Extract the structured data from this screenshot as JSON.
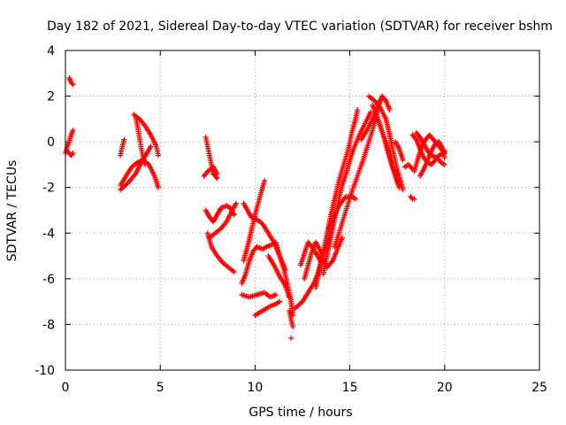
{
  "chart_data": {
    "type": "scatter",
    "title": "Day 182 of 2021, Sidereal Day-to-day VTEC variation (SDTVAR) for receiver bshm",
    "xlabel": "GPS time / hours",
    "ylabel": "SDTVAR / TECUs",
    "xlim": [
      0,
      25
    ],
    "ylim": [
      -10,
      4
    ],
    "xticks": [
      0,
      5,
      10,
      15,
      20,
      25
    ],
    "yticks": [
      -10,
      -8,
      -6,
      -4,
      -2,
      0,
      2,
      4
    ],
    "grid": true,
    "marker": "plus",
    "color": "#ff0000",
    "tracks": [
      [
        [
          0.0,
          -0.5
        ],
        [
          0.1,
          -0.2
        ],
        [
          0.2,
          0.0
        ],
        [
          0.3,
          0.3
        ],
        [
          0.4,
          0.5
        ]
      ],
      [
        [
          0.1,
          -0.4
        ],
        [
          0.2,
          -0.5
        ],
        [
          0.3,
          -0.6
        ],
        [
          0.4,
          -0.5
        ]
      ],
      [
        [
          0.2,
          2.8
        ],
        [
          0.3,
          2.6
        ],
        [
          0.4,
          2.5
        ]
      ],
      [
        [
          2.9,
          -0.6
        ],
        [
          3.0,
          -0.2
        ],
        [
          3.1,
          0.1
        ]
      ],
      [
        [
          2.9,
          -1.9
        ],
        [
          3.2,
          -1.5
        ],
        [
          3.5,
          -1.1
        ],
        [
          3.8,
          -0.9
        ],
        [
          4.1,
          -0.8
        ],
        [
          4.4,
          -1.0
        ],
        [
          4.7,
          -1.5
        ],
        [
          4.9,
          -2.0
        ]
      ],
      [
        [
          2.9,
          -2.1
        ],
        [
          3.3,
          -1.8
        ],
        [
          3.7,
          -1.4
        ],
        [
          4.0,
          -0.9
        ],
        [
          4.3,
          -0.5
        ],
        [
          4.5,
          -0.2
        ]
      ],
      [
        [
          3.6,
          1.2
        ],
        [
          3.9,
          1.0
        ],
        [
          4.2,
          0.7
        ],
        [
          4.5,
          0.3
        ],
        [
          4.8,
          -0.2
        ],
        [
          4.9,
          -0.6
        ]
      ],
      [
        [
          3.7,
          1.1
        ],
        [
          3.8,
          0.7
        ],
        [
          3.9,
          0.2
        ],
        [
          4.0,
          -0.3
        ],
        [
          4.1,
          -0.7
        ],
        [
          4.2,
          -1.0
        ]
      ],
      [
        [
          7.4,
          0.2
        ],
        [
          7.5,
          -0.2
        ],
        [
          7.6,
          -0.6
        ],
        [
          7.7,
          -1.0
        ],
        [
          7.8,
          -1.4
        ],
        [
          8.0,
          -1.6
        ]
      ],
      [
        [
          7.3,
          -1.5
        ],
        [
          7.5,
          -1.3
        ],
        [
          7.8,
          -1.1
        ],
        [
          8.0,
          -1.4
        ]
      ],
      [
        [
          7.4,
          -3.0
        ],
        [
          7.6,
          -3.3
        ],
        [
          7.8,
          -3.5
        ],
        [
          8.0,
          -3.2
        ],
        [
          8.2,
          -2.9
        ],
        [
          8.5,
          -2.8
        ],
        [
          8.7,
          -2.9
        ],
        [
          8.9,
          -3.2
        ]
      ],
      [
        [
          7.5,
          -4.0
        ],
        [
          7.7,
          -4.6
        ],
        [
          8.0,
          -5.0
        ],
        [
          8.3,
          -5.3
        ],
        [
          8.6,
          -5.5
        ],
        [
          8.9,
          -5.7
        ]
      ],
      [
        [
          7.6,
          -4.2
        ],
        [
          7.9,
          -4.0
        ],
        [
          8.2,
          -3.8
        ],
        [
          8.5,
          -3.5
        ],
        [
          8.8,
          -3.0
        ],
        [
          9.0,
          -2.7
        ]
      ],
      [
        [
          9.3,
          -6.2
        ],
        [
          9.5,
          -5.8
        ],
        [
          9.7,
          -5.2
        ],
        [
          9.9,
          -4.8
        ],
        [
          10.1,
          -4.6
        ],
        [
          10.4,
          -4.7
        ],
        [
          10.6,
          -4.6
        ],
        [
          10.9,
          -4.5
        ]
      ],
      [
        [
          9.4,
          -5.2
        ],
        [
          9.6,
          -4.6
        ],
        [
          9.8,
          -3.9
        ],
        [
          10.0,
          -3.2
        ],
        [
          10.2,
          -2.6
        ],
        [
          10.4,
          -2.0
        ],
        [
          10.5,
          -1.7
        ]
      ],
      [
        [
          9.4,
          -2.7
        ],
        [
          9.6,
          -3.0
        ],
        [
          9.8,
          -3.3
        ],
        [
          10.1,
          -3.4
        ],
        [
          10.4,
          -3.6
        ],
        [
          10.7,
          -4.0
        ],
        [
          11.0,
          -4.4
        ],
        [
          11.2,
          -4.8
        ],
        [
          11.4,
          -5.2
        ],
        [
          11.6,
          -5.6
        ]
      ],
      [
        [
          9.3,
          -6.7
        ],
        [
          9.7,
          -6.8
        ],
        [
          10.1,
          -6.7
        ],
        [
          10.5,
          -6.6
        ],
        [
          10.8,
          -6.8
        ],
        [
          11.1,
          -6.7
        ]
      ],
      [
        [
          10.0,
          -7.6
        ],
        [
          10.4,
          -7.4
        ],
        [
          10.8,
          -7.2
        ],
        [
          11.1,
          -7.1
        ],
        [
          11.3,
          -7.0
        ]
      ],
      [
        [
          10.7,
          -5.0
        ],
        [
          11.0,
          -5.4
        ],
        [
          11.3,
          -5.9
        ],
        [
          11.6,
          -6.3
        ],
        [
          11.8,
          -6.8
        ]
      ],
      [
        [
          11.1,
          -4.4
        ],
        [
          11.3,
          -5.0
        ],
        [
          11.5,
          -5.5
        ],
        [
          11.7,
          -6.2
        ],
        [
          11.9,
          -7.0
        ],
        [
          12.0,
          -7.6
        ]
      ],
      [
        [
          11.8,
          -7.4
        ],
        [
          11.9,
          -7.8
        ],
        [
          12.0,
          -8.1
        ]
      ],
      [
        [
          11.9,
          -8.6
        ]
      ],
      [
        [
          12.1,
          -7.3
        ],
        [
          12.5,
          -7.0
        ],
        [
          12.8,
          -6.6
        ],
        [
          13.1,
          -6.2
        ],
        [
          13.3,
          -5.8
        ],
        [
          13.5,
          -5.2
        ],
        [
          13.8,
          -4.4
        ],
        [
          14.0,
          -3.7
        ]
      ],
      [
        [
          12.6,
          -6.0
        ],
        [
          12.8,
          -5.4
        ],
        [
          13.0,
          -4.8
        ],
        [
          13.2,
          -4.4
        ],
        [
          13.4,
          -4.7
        ],
        [
          13.6,
          -5.2
        ],
        [
          13.8,
          -5.5
        ],
        [
          14.1,
          -5.2
        ],
        [
          14.3,
          -4.8
        ],
        [
          14.6,
          -4.2
        ]
      ],
      [
        [
          12.4,
          -5.4
        ],
        [
          12.6,
          -4.9
        ],
        [
          12.8,
          -4.4
        ],
        [
          13.0,
          -4.6
        ],
        [
          13.3,
          -5.0
        ],
        [
          13.5,
          -5.3
        ]
      ],
      [
        [
          13.2,
          -6.4
        ],
        [
          13.4,
          -5.6
        ],
        [
          13.6,
          -4.8
        ],
        [
          13.8,
          -4.0
        ],
        [
          14.0,
          -3.2
        ],
        [
          14.2,
          -2.5
        ],
        [
          14.4,
          -1.8
        ],
        [
          14.6,
          -1.2
        ],
        [
          14.9,
          -0.4
        ],
        [
          15.1,
          0.4
        ],
        [
          15.3,
          1.0
        ],
        [
          15.4,
          1.4
        ]
      ],
      [
        [
          13.6,
          -5.8
        ],
        [
          13.8,
          -5.0
        ],
        [
          14.0,
          -4.2
        ],
        [
          14.2,
          -3.4
        ],
        [
          14.4,
          -2.6
        ],
        [
          14.6,
          -1.9
        ],
        [
          14.8,
          -1.4
        ],
        [
          15.0,
          -0.8
        ],
        [
          15.2,
          -0.3
        ],
        [
          15.5,
          0.3
        ],
        [
          15.8,
          0.8
        ],
        [
          16.1,
          1.3
        ]
      ],
      [
        [
          13.9,
          -3.8
        ],
        [
          14.2,
          -3.2
        ],
        [
          14.5,
          -2.7
        ],
        [
          14.8,
          -2.4
        ],
        [
          15.1,
          -2.4
        ],
        [
          15.3,
          -2.5
        ]
      ],
      [
        [
          14.2,
          -4.6
        ],
        [
          14.5,
          -3.8
        ],
        [
          14.8,
          -3.0
        ],
        [
          15.1,
          -2.2
        ],
        [
          15.4,
          -1.5
        ],
        [
          15.7,
          -0.8
        ],
        [
          16.0,
          0.0
        ],
        [
          16.3,
          0.8
        ],
        [
          16.5,
          1.5
        ],
        [
          16.7,
          2.0
        ]
      ],
      [
        [
          15.6,
          0.1
        ],
        [
          15.9,
          0.5
        ],
        [
          16.2,
          1.0
        ],
        [
          16.5,
          1.6
        ],
        [
          16.7,
          2.0
        ],
        [
          16.9,
          1.8
        ],
        [
          17.1,
          1.4
        ]
      ],
      [
        [
          16.0,
          2.0
        ],
        [
          16.3,
          1.8
        ],
        [
          16.6,
          1.5
        ],
        [
          16.9,
          1.0
        ],
        [
          17.1,
          0.3
        ],
        [
          17.3,
          -0.5
        ],
        [
          17.5,
          -1.2
        ],
        [
          17.7,
          -1.8
        ],
        [
          17.8,
          -2.1
        ]
      ],
      [
        [
          16.2,
          1.6
        ],
        [
          16.4,
          1.2
        ],
        [
          16.6,
          0.7
        ],
        [
          16.8,
          0.2
        ],
        [
          17.0,
          -0.3
        ],
        [
          17.2,
          -0.9
        ],
        [
          17.4,
          -1.4
        ],
        [
          17.6,
          -1.9
        ]
      ],
      [
        [
          16.6,
          0.7
        ],
        [
          16.8,
          0.2
        ],
        [
          17.0,
          -0.4
        ],
        [
          17.2,
          -1.0
        ],
        [
          17.4,
          -1.5
        ],
        [
          17.6,
          -2.0
        ]
      ],
      [
        [
          17.4,
          0.0
        ],
        [
          17.6,
          -0.3
        ],
        [
          17.8,
          -0.8
        ]
      ],
      [
        [
          17.9,
          -1.1
        ],
        [
          18.1,
          -1.0
        ],
        [
          18.3,
          -1.2
        ]
      ],
      [
        [
          18.2,
          -2.4
        ],
        [
          18.3,
          -2.5
        ],
        [
          18.4,
          -2.5
        ]
      ],
      [
        [
          18.3,
          0.3
        ],
        [
          18.5,
          0.1
        ],
        [
          18.7,
          -0.3
        ],
        [
          18.9,
          -0.7
        ],
        [
          19.1,
          -0.9
        ],
        [
          19.3,
          -1.0
        ],
        [
          19.5,
          -0.8
        ],
        [
          19.7,
          -0.6
        ],
        [
          19.9,
          -0.5
        ],
        [
          20.0,
          -0.4
        ]
      ],
      [
        [
          18.4,
          -1.3
        ],
        [
          18.6,
          -0.7
        ],
        [
          18.8,
          -0.2
        ],
        [
          19.0,
          0.1
        ],
        [
          19.2,
          0.3
        ],
        [
          19.4,
          0.1
        ],
        [
          19.6,
          -0.1
        ],
        [
          19.8,
          -0.3
        ],
        [
          20.0,
          -0.5
        ]
      ],
      [
        [
          18.7,
          -1.5
        ],
        [
          18.9,
          -1.2
        ],
        [
          19.1,
          -0.8
        ],
        [
          19.3,
          -0.4
        ],
        [
          19.5,
          -0.1
        ],
        [
          19.7,
          0.0
        ],
        [
          19.9,
          -0.3
        ],
        [
          20.0,
          -0.7
        ]
      ],
      [
        [
          18.5,
          0.4
        ],
        [
          18.7,
          0.2
        ],
        [
          18.9,
          -0.1
        ],
        [
          19.1,
          -0.4
        ],
        [
          19.3,
          -0.6
        ],
        [
          19.6,
          -0.7
        ],
        [
          19.8,
          -0.9
        ],
        [
          20.0,
          -1.0
        ]
      ]
    ]
  }
}
